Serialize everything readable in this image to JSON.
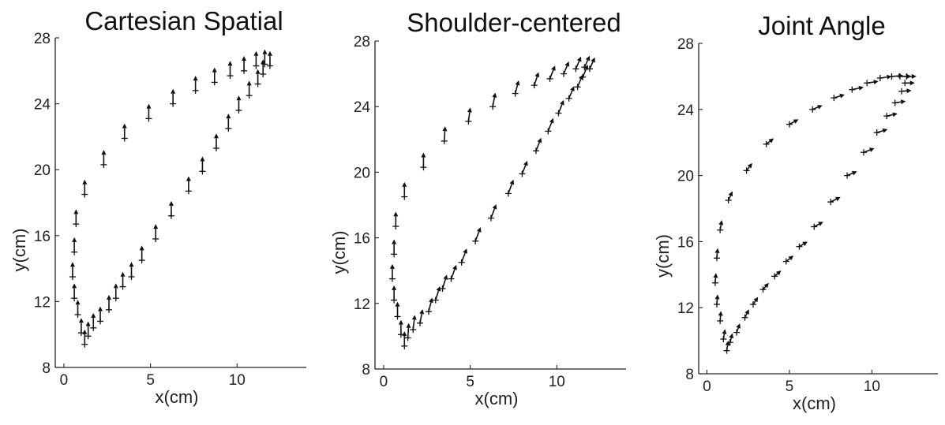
{
  "chart_data": [
    {
      "type": "scatter",
      "title": "Cartesian Spatial",
      "xlabel": "x(cm)",
      "ylabel": "y(cm)",
      "xlim": [
        -0.5,
        14
      ],
      "ylim": [
        8,
        28
      ],
      "xticks": [
        0,
        5,
        10
      ],
      "yticks": [
        8,
        12,
        16,
        20,
        24,
        28
      ],
      "grid": false,
      "marker": "plus with arrow vectors",
      "points": [
        {
          "x": 0.6,
          "y": 15.0,
          "dx": 0.0,
          "dy": 0.9
        },
        {
          "x": 0.7,
          "y": 16.7,
          "dx": 0.0,
          "dy": 0.9
        },
        {
          "x": 1.2,
          "y": 18.5,
          "dx": 0.0,
          "dy": 0.9
        },
        {
          "x": 2.3,
          "y": 20.3,
          "dx": 0.0,
          "dy": 0.9
        },
        {
          "x": 3.5,
          "y": 21.9,
          "dx": 0.0,
          "dy": 0.9
        },
        {
          "x": 4.9,
          "y": 23.1,
          "dx": 0.0,
          "dy": 0.9
        },
        {
          "x": 6.3,
          "y": 24.0,
          "dx": 0.0,
          "dy": 0.9
        },
        {
          "x": 7.6,
          "y": 24.8,
          "dx": 0.0,
          "dy": 0.9
        },
        {
          "x": 8.7,
          "y": 25.3,
          "dx": 0.0,
          "dy": 0.9
        },
        {
          "x": 9.6,
          "y": 25.7,
          "dx": 0.0,
          "dy": 0.9
        },
        {
          "x": 10.4,
          "y": 26.0,
          "dx": 0.0,
          "dy": 0.9
        },
        {
          "x": 11.1,
          "y": 26.3,
          "dx": 0.0,
          "dy": 0.9
        },
        {
          "x": 11.6,
          "y": 26.4,
          "dx": 0.0,
          "dy": 0.9
        },
        {
          "x": 11.9,
          "y": 26.3,
          "dx": 0.0,
          "dy": 0.9
        },
        {
          "x": 0.5,
          "y": 13.5,
          "dx": 0.0,
          "dy": 0.9
        },
        {
          "x": 0.6,
          "y": 12.2,
          "dx": 0.0,
          "dy": 0.9
        },
        {
          "x": 0.8,
          "y": 11.2,
          "dx": 0.0,
          "dy": 0.9
        },
        {
          "x": 1.0,
          "y": 10.1,
          "dx": 0.0,
          "dy": 0.9
        },
        {
          "x": 1.2,
          "y": 9.4,
          "dx": 0.0,
          "dy": 0.9
        },
        {
          "x": 1.4,
          "y": 9.9,
          "dx": 0.0,
          "dy": 0.9
        },
        {
          "x": 1.7,
          "y": 10.4,
          "dx": 0.0,
          "dy": 0.9
        },
        {
          "x": 2.1,
          "y": 10.8,
          "dx": 0.0,
          "dy": 0.9
        },
        {
          "x": 2.6,
          "y": 11.5,
          "dx": 0.0,
          "dy": 0.9
        },
        {
          "x": 3.0,
          "y": 12.2,
          "dx": 0.0,
          "dy": 0.9
        },
        {
          "x": 3.4,
          "y": 12.9,
          "dx": 0.0,
          "dy": 0.9
        },
        {
          "x": 3.9,
          "y": 13.5,
          "dx": 0.0,
          "dy": 0.9
        },
        {
          "x": 4.5,
          "y": 14.5,
          "dx": 0.0,
          "dy": 0.9
        },
        {
          "x": 5.3,
          "y": 15.8,
          "dx": 0.0,
          "dy": 0.9
        },
        {
          "x": 6.2,
          "y": 17.2,
          "dx": 0.0,
          "dy": 0.9
        },
        {
          "x": 7.2,
          "y": 18.7,
          "dx": 0.0,
          "dy": 0.9
        },
        {
          "x": 8.0,
          "y": 19.9,
          "dx": 0.0,
          "dy": 0.9
        },
        {
          "x": 8.8,
          "y": 21.3,
          "dx": 0.0,
          "dy": 0.9
        },
        {
          "x": 9.5,
          "y": 22.5,
          "dx": 0.0,
          "dy": 0.9
        },
        {
          "x": 10.1,
          "y": 23.6,
          "dx": 0.0,
          "dy": 0.9
        },
        {
          "x": 10.7,
          "y": 24.5,
          "dx": 0.0,
          "dy": 0.9
        },
        {
          "x": 11.2,
          "y": 25.2,
          "dx": 0.0,
          "dy": 0.9
        },
        {
          "x": 11.5,
          "y": 25.8,
          "dx": 0.0,
          "dy": 0.9
        }
      ]
    },
    {
      "type": "scatter",
      "title": "Shoulder-centered",
      "xlabel": "x(cm)",
      "ylabel": "y(cm)",
      "xlim": [
        -0.5,
        14
      ],
      "ylim": [
        8,
        28
      ],
      "xticks": [
        0,
        5,
        10
      ],
      "yticks": [
        8,
        12,
        16,
        20,
        24,
        28
      ],
      "grid": false,
      "marker": "plus with arrow vectors",
      "points": [
        {
          "x": 0.6,
          "y": 15.0,
          "dx": 0.0,
          "dy": 0.9
        },
        {
          "x": 0.7,
          "y": 16.7,
          "dx": 0.0,
          "dy": 0.9
        },
        {
          "x": 1.2,
          "y": 18.5,
          "dx": 0.0,
          "dy": 0.9
        },
        {
          "x": 2.3,
          "y": 20.3,
          "dx": 0.0,
          "dy": 0.9
        },
        {
          "x": 3.5,
          "y": 21.9,
          "dx": 0.05,
          "dy": 0.9
        },
        {
          "x": 4.9,
          "y": 23.1,
          "dx": 0.1,
          "dy": 0.85
        },
        {
          "x": 6.3,
          "y": 24.0,
          "dx": 0.15,
          "dy": 0.85
        },
        {
          "x": 7.6,
          "y": 24.8,
          "dx": 0.2,
          "dy": 0.8
        },
        {
          "x": 8.7,
          "y": 25.3,
          "dx": 0.25,
          "dy": 0.8
        },
        {
          "x": 9.6,
          "y": 25.7,
          "dx": 0.3,
          "dy": 0.8
        },
        {
          "x": 10.4,
          "y": 26.0,
          "dx": 0.3,
          "dy": 0.75
        },
        {
          "x": 11.1,
          "y": 26.3,
          "dx": 0.3,
          "dy": 0.75
        },
        {
          "x": 11.6,
          "y": 26.4,
          "dx": 0.3,
          "dy": 0.7
        },
        {
          "x": 11.9,
          "y": 26.3,
          "dx": 0.3,
          "dy": 0.7
        },
        {
          "x": 0.5,
          "y": 13.5,
          "dx": 0.0,
          "dy": 0.9
        },
        {
          "x": 0.6,
          "y": 12.2,
          "dx": 0.0,
          "dy": 0.9
        },
        {
          "x": 0.8,
          "y": 11.2,
          "dx": 0.0,
          "dy": 0.9
        },
        {
          "x": 1.0,
          "y": 10.1,
          "dx": 0.0,
          "dy": 0.9
        },
        {
          "x": 1.2,
          "y": 9.4,
          "dx": 0.0,
          "dy": 0.9
        },
        {
          "x": 1.4,
          "y": 9.9,
          "dx": 0.05,
          "dy": 0.9
        },
        {
          "x": 1.7,
          "y": 10.4,
          "dx": 0.1,
          "dy": 0.9
        },
        {
          "x": 2.1,
          "y": 10.8,
          "dx": 0.15,
          "dy": 0.85
        },
        {
          "x": 2.6,
          "y": 11.5,
          "dx": 0.2,
          "dy": 0.85
        },
        {
          "x": 3.0,
          "y": 12.2,
          "dx": 0.25,
          "dy": 0.85
        },
        {
          "x": 3.4,
          "y": 12.9,
          "dx": 0.25,
          "dy": 0.85
        },
        {
          "x": 3.9,
          "y": 13.5,
          "dx": 0.3,
          "dy": 0.85
        },
        {
          "x": 4.5,
          "y": 14.5,
          "dx": 0.3,
          "dy": 0.85
        },
        {
          "x": 5.3,
          "y": 15.8,
          "dx": 0.3,
          "dy": 0.85
        },
        {
          "x": 6.2,
          "y": 17.2,
          "dx": 0.3,
          "dy": 0.85
        },
        {
          "x": 7.2,
          "y": 18.7,
          "dx": 0.3,
          "dy": 0.85
        },
        {
          "x": 8.0,
          "y": 19.9,
          "dx": 0.3,
          "dy": 0.8
        },
        {
          "x": 8.8,
          "y": 21.3,
          "dx": 0.3,
          "dy": 0.8
        },
        {
          "x": 9.5,
          "y": 22.5,
          "dx": 0.3,
          "dy": 0.8
        },
        {
          "x": 10.1,
          "y": 23.6,
          "dx": 0.3,
          "dy": 0.8
        },
        {
          "x": 10.7,
          "y": 24.5,
          "dx": 0.3,
          "dy": 0.75
        },
        {
          "x": 11.2,
          "y": 25.2,
          "dx": 0.3,
          "dy": 0.75
        },
        {
          "x": 11.5,
          "y": 25.8,
          "dx": 0.3,
          "dy": 0.75
        }
      ]
    },
    {
      "type": "scatter",
      "title": "Joint Angle",
      "xlabel": "x(cm)",
      "ylabel": "y(cm)",
      "xlim": [
        -0.5,
        14
      ],
      "ylim": [
        8,
        28
      ],
      "xticks": [
        0,
        5,
        10
      ],
      "yticks": [
        8,
        12,
        16,
        20,
        24,
        28
      ],
      "grid": false,
      "marker": "plus with arrow vectors",
      "points": [
        {
          "x": 0.6,
          "y": 15.0,
          "dx": 0.05,
          "dy": 0.6
        },
        {
          "x": 0.8,
          "y": 16.7,
          "dx": 0.1,
          "dy": 0.6
        },
        {
          "x": 1.3,
          "y": 18.5,
          "dx": 0.25,
          "dy": 0.55
        },
        {
          "x": 2.4,
          "y": 20.3,
          "dx": 0.35,
          "dy": 0.45
        },
        {
          "x": 3.6,
          "y": 21.9,
          "dx": 0.45,
          "dy": 0.35
        },
        {
          "x": 5.0,
          "y": 23.1,
          "dx": 0.55,
          "dy": 0.3
        },
        {
          "x": 6.4,
          "y": 24.0,
          "dx": 0.6,
          "dy": 0.25
        },
        {
          "x": 7.7,
          "y": 24.7,
          "dx": 0.65,
          "dy": 0.2
        },
        {
          "x": 8.8,
          "y": 25.2,
          "dx": 0.7,
          "dy": 0.15
        },
        {
          "x": 9.7,
          "y": 25.6,
          "dx": 0.7,
          "dy": 0.1
        },
        {
          "x": 10.5,
          "y": 25.9,
          "dx": 0.7,
          "dy": 0.1
        },
        {
          "x": 11.2,
          "y": 26.0,
          "dx": 0.7,
          "dy": 0.05
        },
        {
          "x": 11.7,
          "y": 26.0,
          "dx": 0.7,
          "dy": 0.0
        },
        {
          "x": 12.1,
          "y": 26.0,
          "dx": 0.6,
          "dy": 0.0
        },
        {
          "x": 0.5,
          "y": 13.5,
          "dx": 0.05,
          "dy": 0.6
        },
        {
          "x": 0.6,
          "y": 12.2,
          "dx": 0.05,
          "dy": 0.6
        },
        {
          "x": 0.8,
          "y": 11.2,
          "dx": 0.05,
          "dy": 0.6
        },
        {
          "x": 1.0,
          "y": 10.1,
          "dx": 0.1,
          "dy": 0.6
        },
        {
          "x": 1.2,
          "y": 9.4,
          "dx": 0.1,
          "dy": 0.6
        },
        {
          "x": 1.4,
          "y": 9.9,
          "dx": 0.15,
          "dy": 0.55
        },
        {
          "x": 1.8,
          "y": 10.5,
          "dx": 0.2,
          "dy": 0.55
        },
        {
          "x": 2.3,
          "y": 11.4,
          "dx": 0.25,
          "dy": 0.5
        },
        {
          "x": 2.8,
          "y": 12.2,
          "dx": 0.3,
          "dy": 0.45
        },
        {
          "x": 3.4,
          "y": 13.1,
          "dx": 0.35,
          "dy": 0.4
        },
        {
          "x": 4.1,
          "y": 13.9,
          "dx": 0.4,
          "dy": 0.35
        },
        {
          "x": 4.8,
          "y": 14.8,
          "dx": 0.45,
          "dy": 0.35
        },
        {
          "x": 5.6,
          "y": 15.7,
          "dx": 0.5,
          "dy": 0.3
        },
        {
          "x": 6.5,
          "y": 16.9,
          "dx": 0.55,
          "dy": 0.3
        },
        {
          "x": 7.5,
          "y": 18.4,
          "dx": 0.6,
          "dy": 0.3
        },
        {
          "x": 8.5,
          "y": 20.0,
          "dx": 0.6,
          "dy": 0.25
        },
        {
          "x": 9.5,
          "y": 21.4,
          "dx": 0.65,
          "dy": 0.25
        },
        {
          "x": 10.3,
          "y": 22.6,
          "dx": 0.65,
          "dy": 0.2
        },
        {
          "x": 10.9,
          "y": 23.6,
          "dx": 0.65,
          "dy": 0.15
        },
        {
          "x": 11.4,
          "y": 24.4,
          "dx": 0.65,
          "dy": 0.1
        },
        {
          "x": 11.8,
          "y": 25.1,
          "dx": 0.6,
          "dy": 0.05
        },
        {
          "x": 12.0,
          "y": 25.6,
          "dx": 0.6,
          "dy": 0.0
        }
      ]
    }
  ]
}
